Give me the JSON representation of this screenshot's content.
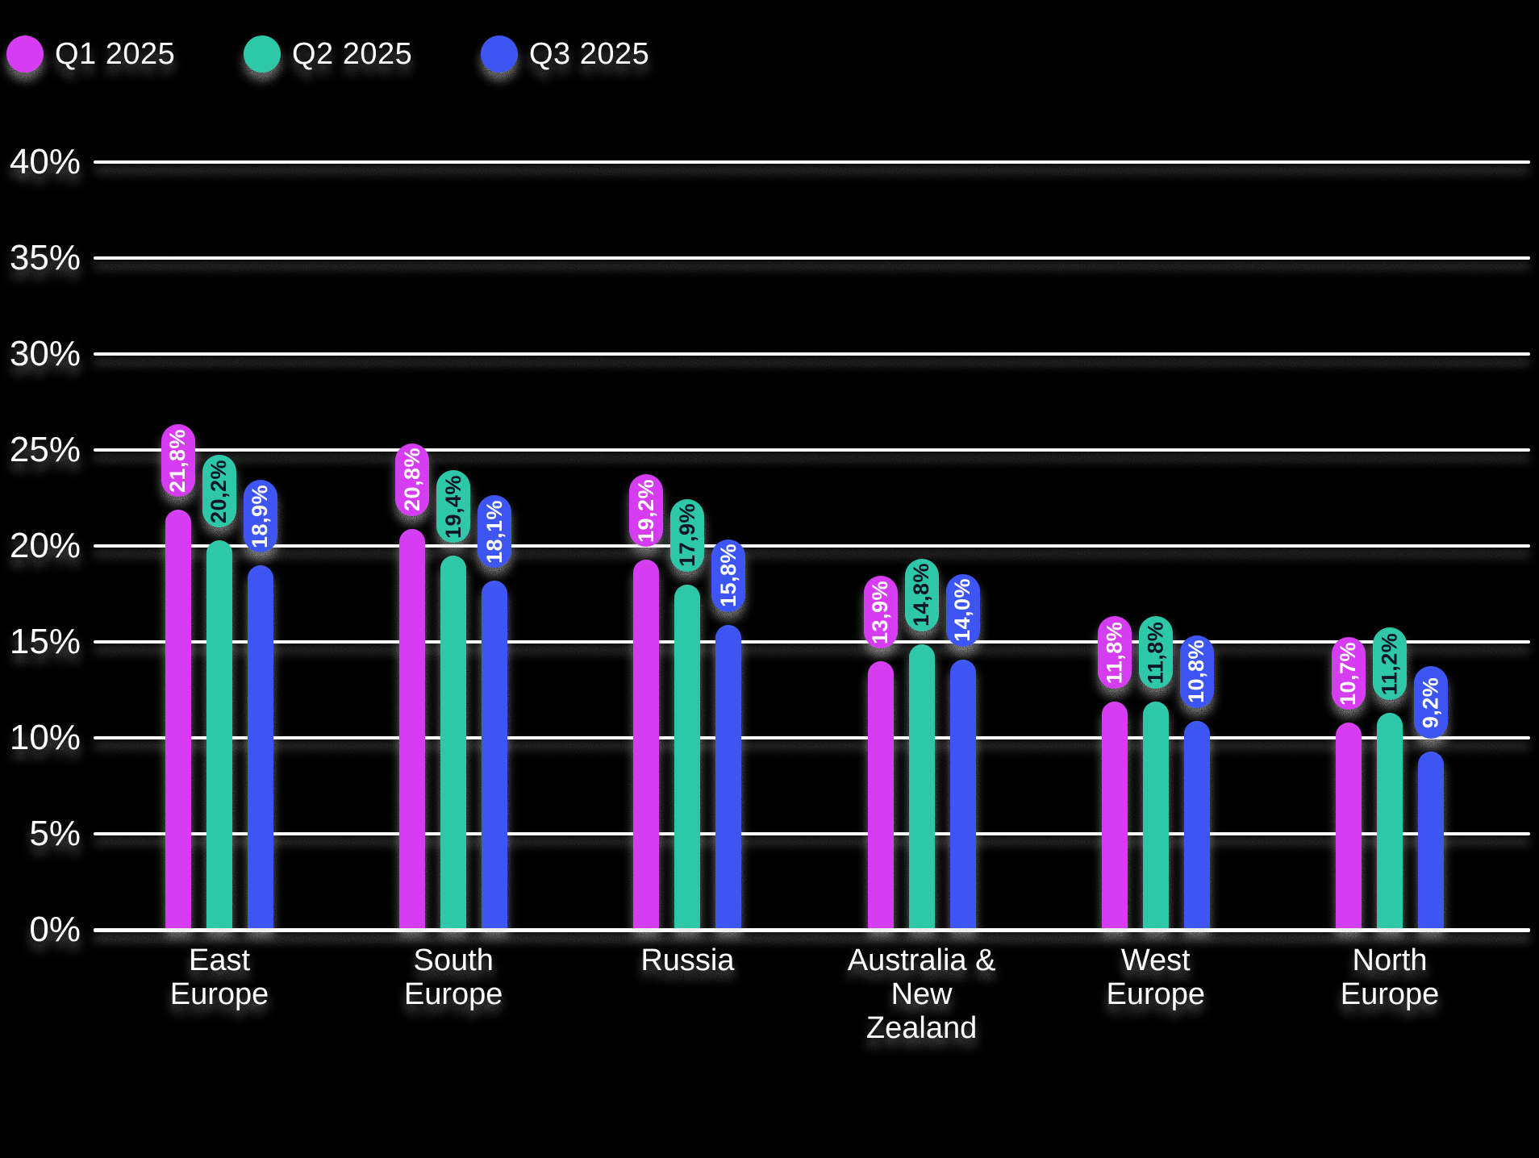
{
  "legend": {
    "items": [
      {
        "label": "Q1 2025",
        "color": "#d63cf2"
      },
      {
        "label": "Q2 2025",
        "color": "#2dc8a8"
      },
      {
        "label": "Q3 2025",
        "color": "#3c55f2"
      }
    ]
  },
  "chart_data": {
    "type": "bar",
    "categories": [
      "East Europe",
      "South Europe",
      "Russia",
      "Australia & New Zealand",
      "West Europe",
      "North Europe"
    ],
    "category_display": [
      "East\nEurope",
      "South\nEurope",
      "Russia",
      "Australia &\nNew\nZealand",
      "West\nEurope",
      "North\nEurope"
    ],
    "series": [
      {
        "name": "Q1 2025",
        "color": "#d63cf2",
        "label_text_color": "#ffffff",
        "values": [
          21.8,
          20.8,
          19.2,
          13.9,
          11.8,
          10.7
        ],
        "labels": [
          "21,8%",
          "20,8%",
          "19,2%",
          "13,9%",
          "11,8%",
          "10,7%"
        ]
      },
      {
        "name": "Q2 2025",
        "color": "#2dc8a8",
        "label_text_color": "#0e1226",
        "values": [
          20.2,
          19.4,
          17.9,
          14.8,
          11.8,
          11.2
        ],
        "labels": [
          "20,2%",
          "19,4%",
          "17,9%",
          "14,8%",
          "11,8%",
          "11,2%"
        ]
      },
      {
        "name": "Q3 2025",
        "color": "#3c55f2",
        "label_text_color": "#ffffff",
        "values": [
          18.9,
          18.1,
          15.8,
          14.0,
          10.8,
          9.2
        ],
        "labels": [
          "18,9%",
          "18,1%",
          "15,8%",
          "14,0%",
          "10,8%",
          "9,2%"
        ]
      }
    ],
    "y_ticks": [
      "0%",
      "5%",
      "10%",
      "15%",
      "20%",
      "25%",
      "30%",
      "35%",
      "40%"
    ],
    "ylim": [
      0,
      40
    ],
    "grid": true,
    "legend_position": "top",
    "title": "",
    "xlabel": "",
    "ylabel": ""
  },
  "colors": {
    "background": "#000000",
    "gridline": "#ffffff",
    "text": "#ffffff"
  }
}
